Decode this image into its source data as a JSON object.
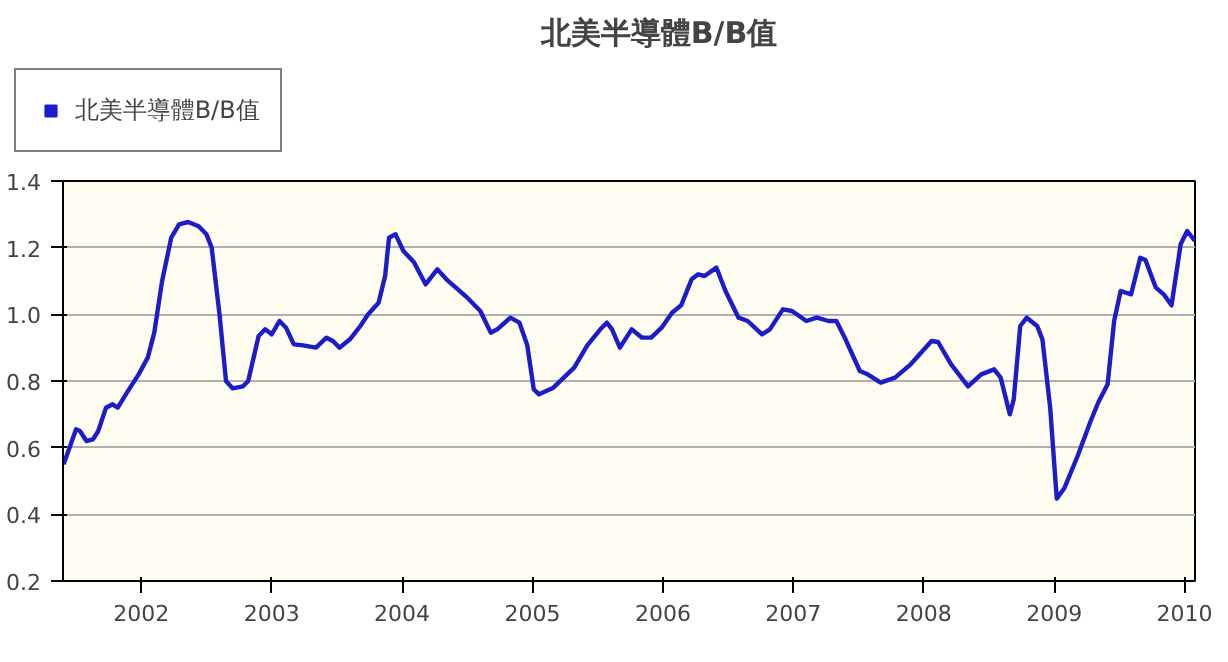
{
  "chart_data": {
    "type": "line",
    "title": "北美半導體B/B值",
    "legend": "top left",
    "grid": "y",
    "marker": "none",
    "line_style": "solid",
    "xlim": [
      2001.4,
      2010.08
    ],
    "xticks": [
      2002,
      2003,
      2004,
      2005,
      2006,
      2007,
      2008,
      2009,
      2010
    ],
    "ylim": [
      0.2,
      1.4
    ],
    "yticks": [
      0.2,
      0.4,
      0.6,
      0.8,
      {
        "value": 1,
        "label": "1.0"
      },
      1.2,
      1.4
    ],
    "series": [
      {
        "name": "北美半導體B/B值",
        "color": "#1c1cc8",
        "x": [
          2001.405,
          2001.45,
          2001.5,
          2001.53,
          2001.58,
          2001.63,
          2001.67,
          2001.73,
          2001.78,
          2001.82,
          2001.89,
          2001.98,
          2002.05,
          2002.1,
          2002.16,
          2002.23,
          2002.29,
          2002.36,
          2002.44,
          2002.5,
          2002.54,
          2002.6,
          2002.65,
          2002.7,
          2002.78,
          2002.82,
          2002.9,
          2002.95,
          2003.0,
          2003.06,
          2003.11,
          2003.17,
          2003.24,
          2003.34,
          2003.42,
          2003.47,
          2003.52,
          2003.6,
          2003.68,
          2003.74,
          2003.82,
          2003.87,
          2003.9,
          2003.95,
          2004.01,
          2004.09,
          2004.18,
          2004.27,
          2004.34,
          2004.5,
          2004.6,
          2004.68,
          2004.73,
          2004.83,
          2004.9,
          2004.96,
          2005.01,
          2005.05,
          2005.16,
          2005.32,
          2005.42,
          2005.52,
          2005.57,
          2005.61,
          2005.67,
          2005.76,
          2005.84,
          2005.91,
          2005.99,
          2006.07,
          2006.14,
          2006.22,
          2006.27,
          2006.32,
          2006.41,
          2006.48,
          2006.58,
          2006.65,
          2006.76,
          2006.82,
          2006.92,
          2006.99,
          2007.1,
          2007.18,
          2007.27,
          2007.33,
          2007.4,
          2007.51,
          2007.57,
          2007.67,
          2007.78,
          2007.9,
          2008.06,
          2008.11,
          2008.21,
          2008.34,
          2008.44,
          2008.54,
          2008.59,
          2008.66,
          2008.69,
          2008.74,
          2008.79,
          2008.87,
          2008.91,
          2008.97,
          2009.02,
          2009.08,
          2009.18,
          2009.28,
          2009.34,
          2009.41,
          2009.46,
          2009.51,
          2009.59,
          2009.66,
          2009.7,
          2009.78,
          2009.84,
          2009.9,
          2009.97,
          2010.02,
          2010.08
        ],
        "values": [
          0.55,
          0.6,
          0.655,
          0.65,
          0.62,
          0.625,
          0.65,
          0.72,
          0.73,
          0.72,
          0.765,
          0.82,
          0.87,
          0.945,
          1.1,
          1.23,
          1.27,
          1.277,
          1.264,
          1.24,
          1.2,
          1.0,
          0.8,
          0.778,
          0.784,
          0.8,
          0.935,
          0.955,
          0.94,
          0.98,
          0.96,
          0.91,
          0.907,
          0.9,
          0.93,
          0.92,
          0.9,
          0.925,
          0.965,
          1.0,
          1.035,
          1.115,
          1.23,
          1.24,
          1.19,
          1.157,
          1.09,
          1.135,
          1.105,
          1.05,
          1.01,
          0.945,
          0.955,
          0.99,
          0.975,
          0.907,
          0.775,
          0.76,
          0.78,
          0.84,
          0.907,
          0.955,
          0.975,
          0.955,
          0.9,
          0.955,
          0.93,
          0.93,
          0.96,
          1.005,
          1.027,
          1.105,
          1.12,
          1.115,
          1.14,
          1.07,
          0.99,
          0.98,
          0.94,
          0.955,
          1.015,
          1.01,
          0.98,
          0.99,
          0.98,
          0.98,
          0.925,
          0.83,
          0.82,
          0.795,
          0.81,
          0.85,
          0.92,
          0.917,
          0.85,
          0.784,
          0.82,
          0.835,
          0.81,
          0.7,
          0.745,
          0.965,
          0.99,
          0.965,
          0.925,
          0.718,
          0.447,
          0.48,
          0.575,
          0.68,
          0.737,
          0.79,
          0.98,
          1.07,
          1.06,
          1.17,
          1.163,
          1.08,
          1.06,
          1.027,
          1.21,
          1.25,
          1.22
        ]
      }
    ]
  }
}
